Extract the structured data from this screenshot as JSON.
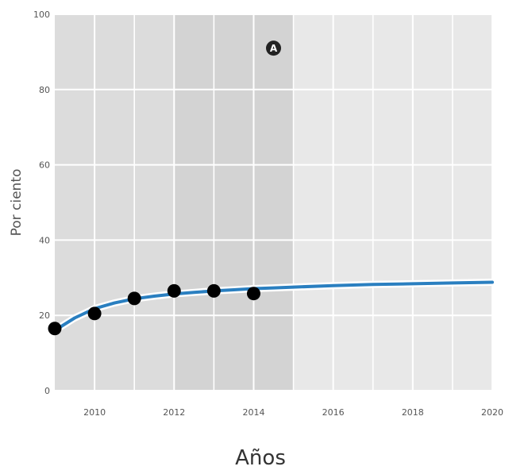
{
  "chart_data": {
    "type": "line",
    "title": "",
    "xlabel": "Años",
    "ylabel": "Por ciento",
    "xlim": [
      2009,
      2020
    ],
    "ylim": [
      0,
      100
    ],
    "x_ticks": [
      2010,
      2012,
      2014,
      2016,
      2018,
      2020
    ],
    "y_ticks": [
      0,
      20,
      40,
      60,
      80,
      100
    ],
    "grid": true,
    "legend": "none",
    "shaded_regions": [
      {
        "x_start": 2009,
        "x_end": 2012,
        "color": "#dcdcdc"
      },
      {
        "x_start": 2012,
        "x_end": 2015,
        "color": "#d3d3d3"
      },
      {
        "x_start": 2015,
        "x_end": 2020,
        "color": "#e8e8e8"
      }
    ],
    "annotation": {
      "label": "A",
      "x": 2014.5,
      "y": 91
    },
    "series": [
      {
        "type": "scatter",
        "color": "#000000",
        "x": [
          2009,
          2010,
          2011,
          2012,
          2013,
          2014
        ],
        "y": [
          16.5,
          20.5,
          24.5,
          26.5,
          26.5,
          25.8
        ]
      },
      {
        "type": "fit",
        "color": "#2a7fc0",
        "halo": "#ffffff",
        "x": [
          2009,
          2009.5,
          2010,
          2010.5,
          2011,
          2011.5,
          2012,
          2012.5,
          2013,
          2013.5,
          2014,
          2014.5,
          2015,
          2016,
          2017,
          2018,
          2019,
          2020
        ],
        "y": [
          16.0,
          19.3,
          21.8,
          23.3,
          24.4,
          25.1,
          25.7,
          26.1,
          26.5,
          26.8,
          27.1,
          27.3,
          27.5,
          27.9,
          28.2,
          28.4,
          28.6,
          28.8
        ]
      }
    ]
  }
}
